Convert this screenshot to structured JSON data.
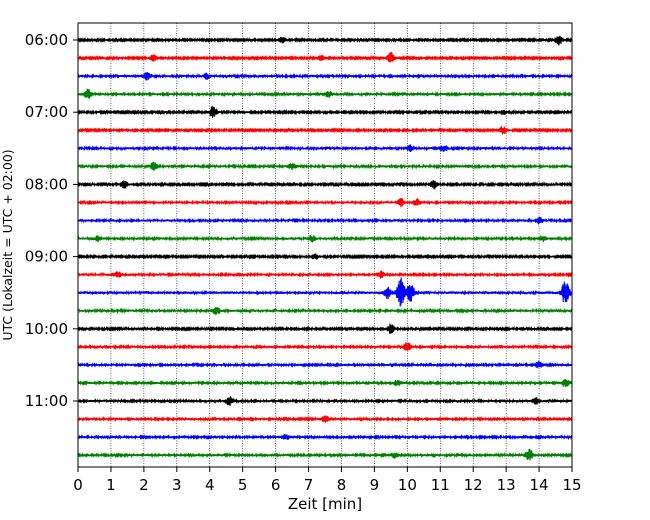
{
  "chart_data": {
    "type": "line",
    "title": "",
    "xlabel": "Zeit  [min]",
    "ylabel": "UTC (Lokalzeit = UTC + 02:00)",
    "xlim": [
      0,
      15
    ],
    "x_ticks": [
      0,
      1,
      2,
      3,
      4,
      5,
      6,
      7,
      8,
      9,
      10,
      11,
      12,
      13,
      14,
      15
    ],
    "grid": "vertical dotted at each minute",
    "trace_interval_min": 15,
    "trace_colors": [
      "#000000",
      "#ff0000",
      "#0000ff",
      "#008000"
    ],
    "y_tick_labels": [
      "06:00",
      "07:00",
      "08:00",
      "09:00",
      "10:00",
      "11:00"
    ],
    "traces": [
      {
        "start": "06:00",
        "color": "#000000",
        "amplitude": 0.25,
        "events": [
          {
            "t": 6.2,
            "amp": 0.7
          },
          {
            "t": 14.6,
            "amp": 1.0
          }
        ]
      },
      {
        "start": "06:15",
        "color": "#ff0000",
        "amplitude": 0.25,
        "events": [
          {
            "t": 2.3,
            "amp": 0.7
          },
          {
            "t": 7.4,
            "amp": 0.6
          },
          {
            "t": 9.5,
            "amp": 1.2
          }
        ]
      },
      {
        "start": "06:30",
        "color": "#0000ff",
        "amplitude": 0.3,
        "events": [
          {
            "t": 2.1,
            "amp": 0.8
          },
          {
            "t": 3.9,
            "amp": 0.6
          }
        ]
      },
      {
        "start": "06:45",
        "color": "#008000",
        "amplitude": 0.3,
        "events": [
          {
            "t": 0.3,
            "amp": 1.0
          },
          {
            "t": 7.6,
            "amp": 0.7
          }
        ]
      },
      {
        "start": "07:00",
        "color": "#000000",
        "amplitude": 0.25,
        "events": [
          {
            "t": 4.1,
            "amp": 1.3
          },
          {
            "t": 12.9,
            "amp": 0.5
          }
        ]
      },
      {
        "start": "07:15",
        "color": "#ff0000",
        "amplitude": 0.25,
        "events": [
          {
            "t": 12.9,
            "amp": 0.8
          }
        ]
      },
      {
        "start": "07:30",
        "color": "#0000ff",
        "amplitude": 0.3,
        "events": [
          {
            "t": 10.1,
            "amp": 0.7
          },
          {
            "t": 11.1,
            "amp": 0.7
          }
        ]
      },
      {
        "start": "07:45",
        "color": "#008000",
        "amplitude": 0.3,
        "events": [
          {
            "t": 2.3,
            "amp": 0.8
          },
          {
            "t": 6.5,
            "amp": 0.6
          }
        ]
      },
      {
        "start": "08:00",
        "color": "#000000",
        "amplitude": 0.25,
        "events": [
          {
            "t": 1.4,
            "amp": 0.8
          },
          {
            "t": 10.8,
            "amp": 0.9
          }
        ]
      },
      {
        "start": "08:15",
        "color": "#ff0000",
        "amplitude": 0.3,
        "events": [
          {
            "t": 9.8,
            "amp": 0.8
          },
          {
            "t": 10.3,
            "amp": 0.7
          }
        ]
      },
      {
        "start": "08:30",
        "color": "#0000ff",
        "amplitude": 0.3,
        "events": [
          {
            "t": 14.0,
            "amp": 0.7
          }
        ]
      },
      {
        "start": "08:45",
        "color": "#008000",
        "amplitude": 0.3,
        "events": [
          {
            "t": 0.6,
            "amp": 0.6
          },
          {
            "t": 7.1,
            "amp": 0.7
          },
          {
            "t": 14.1,
            "amp": 0.6
          }
        ]
      },
      {
        "start": "09:00",
        "color": "#000000",
        "amplitude": 0.25,
        "events": [
          {
            "t": 7.2,
            "amp": 0.6
          }
        ]
      },
      {
        "start": "09:15",
        "color": "#ff0000",
        "amplitude": 0.3,
        "events": [
          {
            "t": 1.2,
            "amp": 0.6
          },
          {
            "t": 9.2,
            "amp": 0.8
          }
        ]
      },
      {
        "start": "09:30",
        "color": "#0000ff",
        "amplitude": 0.35,
        "events": [
          {
            "t": 9.4,
            "amp": 1.2
          },
          {
            "t": 9.8,
            "amp": 3.5
          },
          {
            "t": 10.1,
            "amp": 2.0
          },
          {
            "t": 14.8,
            "amp": 2.8
          }
        ]
      },
      {
        "start": "09:45",
        "color": "#008000",
        "amplitude": 0.3,
        "events": [
          {
            "t": 4.2,
            "amp": 0.9
          }
        ]
      },
      {
        "start": "10:00",
        "color": "#000000",
        "amplitude": 0.25,
        "events": [
          {
            "t": 9.5,
            "amp": 1.0
          }
        ]
      },
      {
        "start": "10:15",
        "color": "#ff0000",
        "amplitude": 0.3,
        "events": [
          {
            "t": 10.0,
            "amp": 0.9
          }
        ]
      },
      {
        "start": "10:30",
        "color": "#0000ff",
        "amplitude": 0.3,
        "events": [
          {
            "t": 14.0,
            "amp": 0.8
          }
        ]
      },
      {
        "start": "10:45",
        "color": "#008000",
        "amplitude": 0.3,
        "events": [
          {
            "t": 9.7,
            "amp": 0.6
          },
          {
            "t": 14.8,
            "amp": 0.8
          }
        ]
      },
      {
        "start": "11:00",
        "color": "#000000",
        "amplitude": 0.3,
        "events": [
          {
            "t": 4.6,
            "amp": 0.9
          },
          {
            "t": 13.9,
            "amp": 0.7
          }
        ]
      },
      {
        "start": "11:15",
        "color": "#ff0000",
        "amplitude": 0.3,
        "events": [
          {
            "t": 7.5,
            "amp": 0.6
          }
        ]
      },
      {
        "start": "11:30",
        "color": "#0000ff",
        "amplitude": 0.3,
        "events": [
          {
            "t": 6.3,
            "amp": 0.5
          }
        ]
      },
      {
        "start": "11:45",
        "color": "#008000",
        "amplitude": 0.3,
        "events": [
          {
            "t": 9.6,
            "amp": 0.6
          },
          {
            "t": 13.7,
            "amp": 1.3
          }
        ]
      }
    ]
  }
}
